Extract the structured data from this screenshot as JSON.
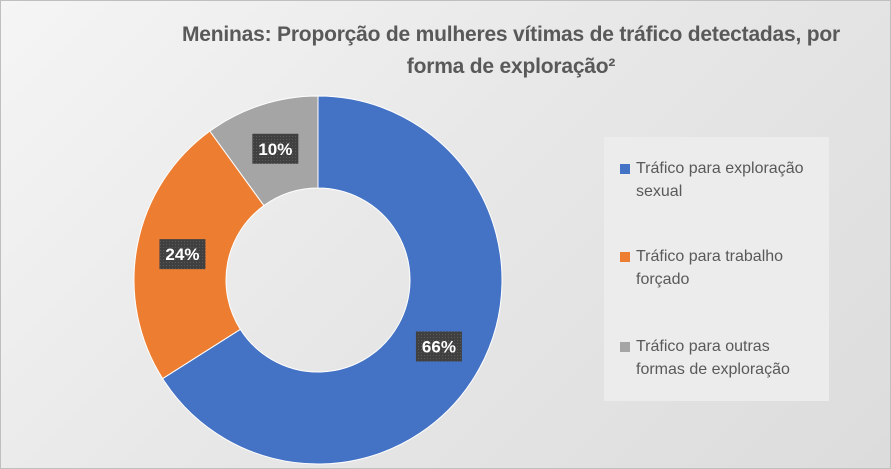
{
  "chart_data": {
    "type": "pie",
    "variant": "donut",
    "title": "Meninas: Proporção de mulheres vítimas de tráfico detectadas, por forma de exploração²",
    "categories": [
      "Tráfico para exploração sexual",
      "Tráfico para trabalho forçado",
      "Tráfico para outras formas de exploração"
    ],
    "values": [
      66,
      24,
      10
    ],
    "data_labels": [
      "66%",
      "24%",
      "10%"
    ],
    "colors": [
      "#4472c4",
      "#ed7d31",
      "#a5a5a5"
    ],
    "legend_position": "right"
  },
  "legend": {
    "items": [
      {
        "label": "Tráfico para exploração sexual",
        "color": "#4472c4"
      },
      {
        "label": "Tráfico para trabalho forçado",
        "color": "#ed7d31"
      },
      {
        "label": "Tráfico para outras formas de exploração",
        "color": "#a5a5a5"
      }
    ]
  }
}
